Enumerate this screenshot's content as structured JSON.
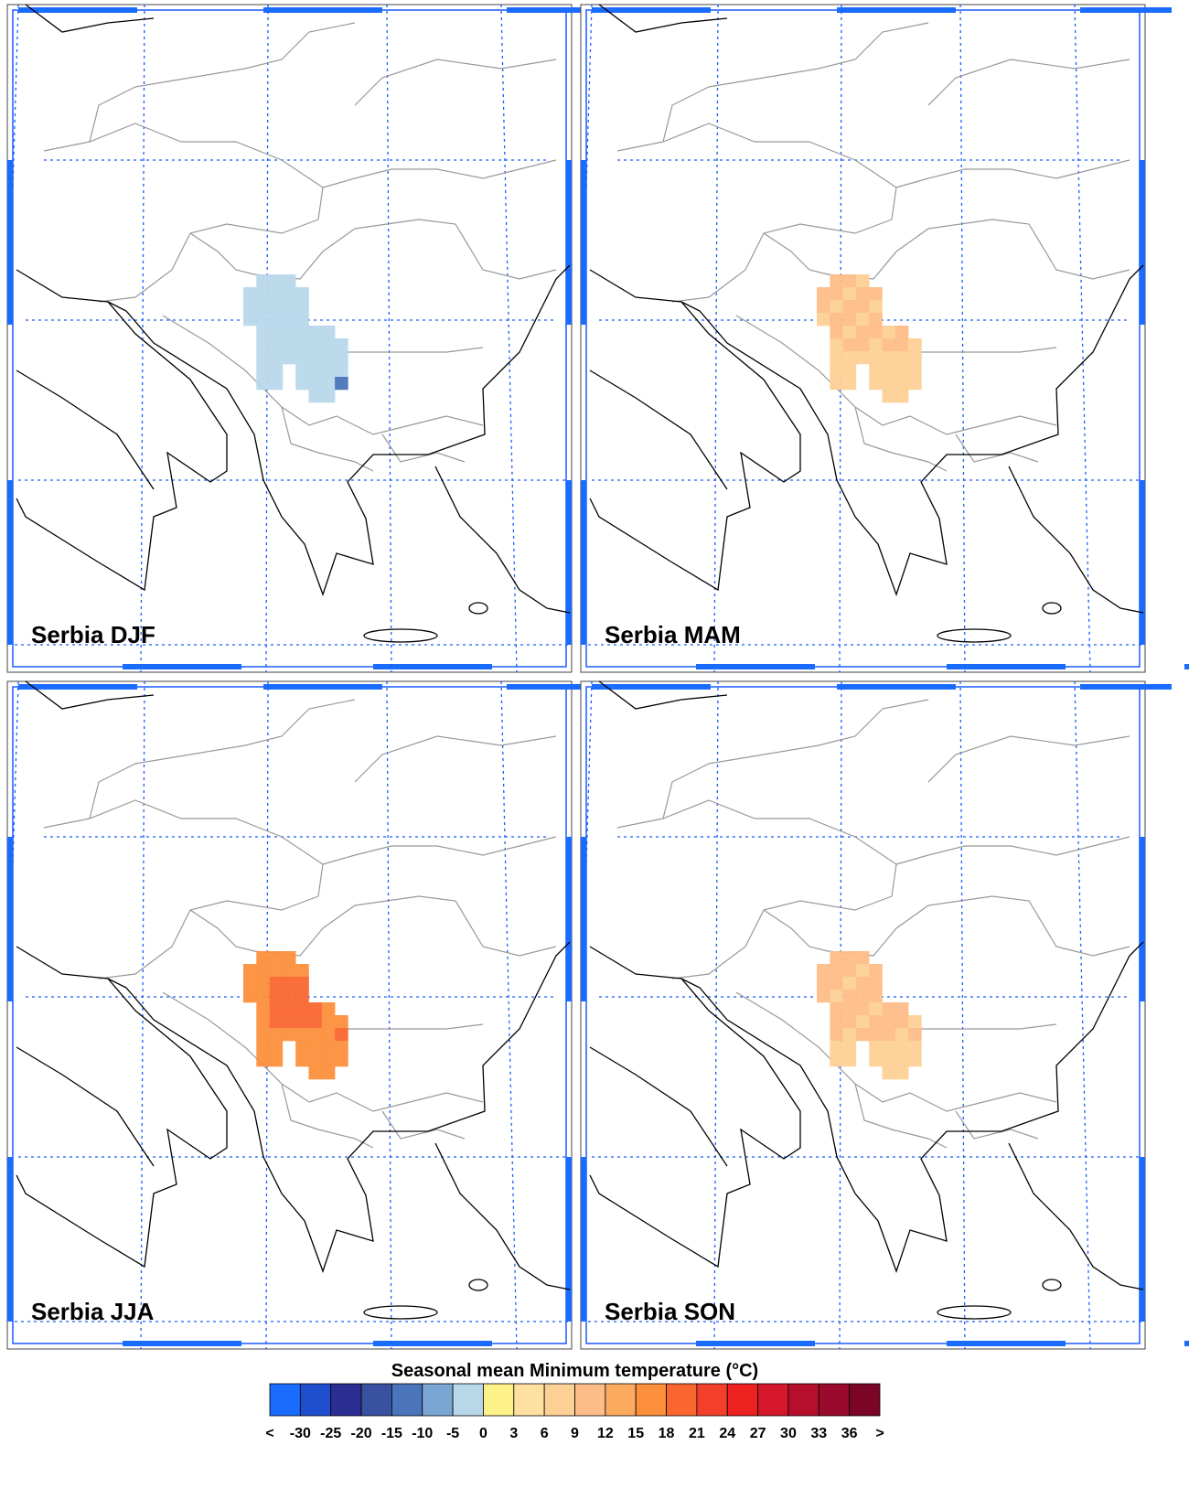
{
  "panels": [
    {
      "label": "Serbia DJF"
    },
    {
      "label": "Serbia MAM"
    },
    {
      "label": "Serbia JJA"
    },
    {
      "label": "Serbia SON"
    }
  ],
  "colorbar": {
    "title": "Seasonal mean Minimum temperature (°C)",
    "labels": [
      "<",
      "-30",
      "-25",
      "-20",
      "-15",
      "-10",
      "-5",
      "0",
      "3",
      "6",
      "9",
      "12",
      "15",
      "18",
      "21",
      "24",
      "27",
      "30",
      "33",
      "36",
      ">"
    ],
    "colors": [
      "#1a6cff",
      "#1f4fcf",
      "#2b2f94",
      "#3a50a0",
      "#4a75bb",
      "#7aa6d4",
      "#b8d8ea",
      "#fff18a",
      "#fee0a0",
      "#fdd096",
      "#fdbd88",
      "#fcaa5e",
      "#fc8f3c",
      "#f96630",
      "#f43f2a",
      "#ee2121",
      "#d6162a",
      "#b50f2c",
      "#9a0a2c",
      "#7a0527"
    ]
  }
}
